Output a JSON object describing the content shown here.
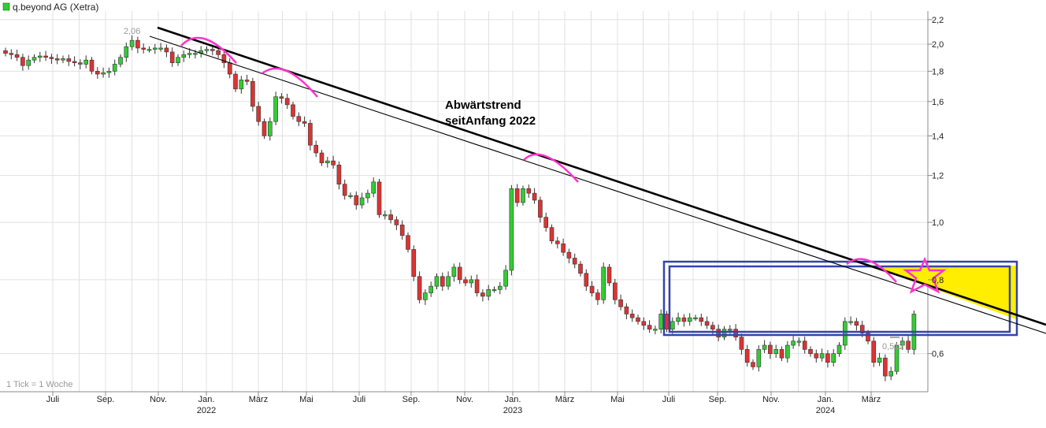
{
  "legend": {
    "label": "q.beyond AG (Xetra)",
    "color": "#33cc33"
  },
  "footnote": "1 Tick = 1 Woche",
  "annotation": {
    "line1": "Abwärtstrend",
    "line2": "seitAnfang 2022"
  },
  "markers": {
    "high": "2,06",
    "low": "0,512"
  },
  "colors": {
    "up": "#33cc33",
    "down": "#dd3333",
    "grid": "#e0e0e0",
    "trend": "#000000",
    "arc": "#ff33cc",
    "box": "#3344aa",
    "fill": "#ffee00"
  },
  "chart_data": {
    "type": "candlestick",
    "yscale": "log",
    "ylim": [
      0.5,
      2.3
    ],
    "yticks": [
      "2,2",
      "2,0",
      "1,8",
      "1,6",
      "1,4",
      "1,2",
      "1,0",
      "0,8",
      "0,6"
    ],
    "xticks": [
      {
        "label": "Juli",
        "year": ""
      },
      {
        "label": "Sep.",
        "year": ""
      },
      {
        "label": "Nov.",
        "year": ""
      },
      {
        "label": "Jan.",
        "year": "2022"
      },
      {
        "label": "März",
        "year": ""
      },
      {
        "label": "Mai",
        "year": ""
      },
      {
        "label": "Juli",
        "year": ""
      },
      {
        "label": "Sep.",
        "year": ""
      },
      {
        "label": "Nov.",
        "year": ""
      },
      {
        "label": "Jan.",
        "year": "2023"
      },
      {
        "label": "März",
        "year": ""
      },
      {
        "label": "Mai",
        "year": ""
      },
      {
        "label": "Juli",
        "year": ""
      },
      {
        "label": "Sep.",
        "year": ""
      },
      {
        "label": "Nov.",
        "year": ""
      },
      {
        "label": "Jan.",
        "year": "2024"
      },
      {
        "label": "März",
        "year": ""
      }
    ],
    "period": "weekly",
    "close": [
      1.93,
      1.92,
      1.9,
      1.84,
      1.88,
      1.9,
      1.91,
      1.9,
      1.89,
      1.88,
      1.89,
      1.87,
      1.86,
      1.85,
      1.88,
      1.8,
      1.78,
      1.79,
      1.8,
      1.85,
      1.9,
      1.98,
      2.03,
      1.97,
      1.96,
      1.96,
      1.97,
      1.97,
      1.94,
      1.86,
      1.9,
      1.92,
      1.93,
      1.93,
      1.95,
      1.96,
      1.95,
      1.92,
      1.86,
      1.78,
      1.68,
      1.74,
      1.73,
      1.57,
      1.48,
      1.4,
      1.48,
      1.63,
      1.62,
      1.58,
      1.51,
      1.48,
      1.47,
      1.35,
      1.31,
      1.26,
      1.27,
      1.25,
      1.16,
      1.11,
      1.11,
      1.07,
      1.1,
      1.12,
      1.17,
      1.03,
      1.03,
      1.01,
      0.99,
      0.95,
      0.9,
      0.81,
      0.74,
      0.76,
      0.78,
      0.81,
      0.78,
      0.81,
      0.84,
      0.8,
      0.79,
      0.8,
      0.76,
      0.75,
      0.77,
      0.77,
      0.78,
      0.83,
      1.14,
      1.08,
      1.14,
      1.12,
      1.09,
      1.02,
      0.98,
      0.93,
      0.92,
      0.89,
      0.87,
      0.85,
      0.82,
      0.78,
      0.76,
      0.74,
      0.84,
      0.79,
      0.74,
      0.72,
      0.7,
      0.69,
      0.68,
      0.67,
      0.66,
      0.66,
      0.7,
      0.66,
      0.68,
      0.69,
      0.68,
      0.69,
      0.69,
      0.68,
      0.67,
      0.66,
      0.64,
      0.66,
      0.66,
      0.64,
      0.61,
      0.58,
      0.57,
      0.61,
      0.62,
      0.6,
      0.61,
      0.59,
      0.62,
      0.63,
      0.63,
      0.61,
      0.6,
      0.59,
      0.6,
      0.58,
      0.6,
      0.62,
      0.68,
      0.68,
      0.67,
      0.65,
      0.63,
      0.58,
      0.59,
      0.55,
      0.56,
      0.62,
      0.63,
      0.61,
      0.7
    ]
  }
}
